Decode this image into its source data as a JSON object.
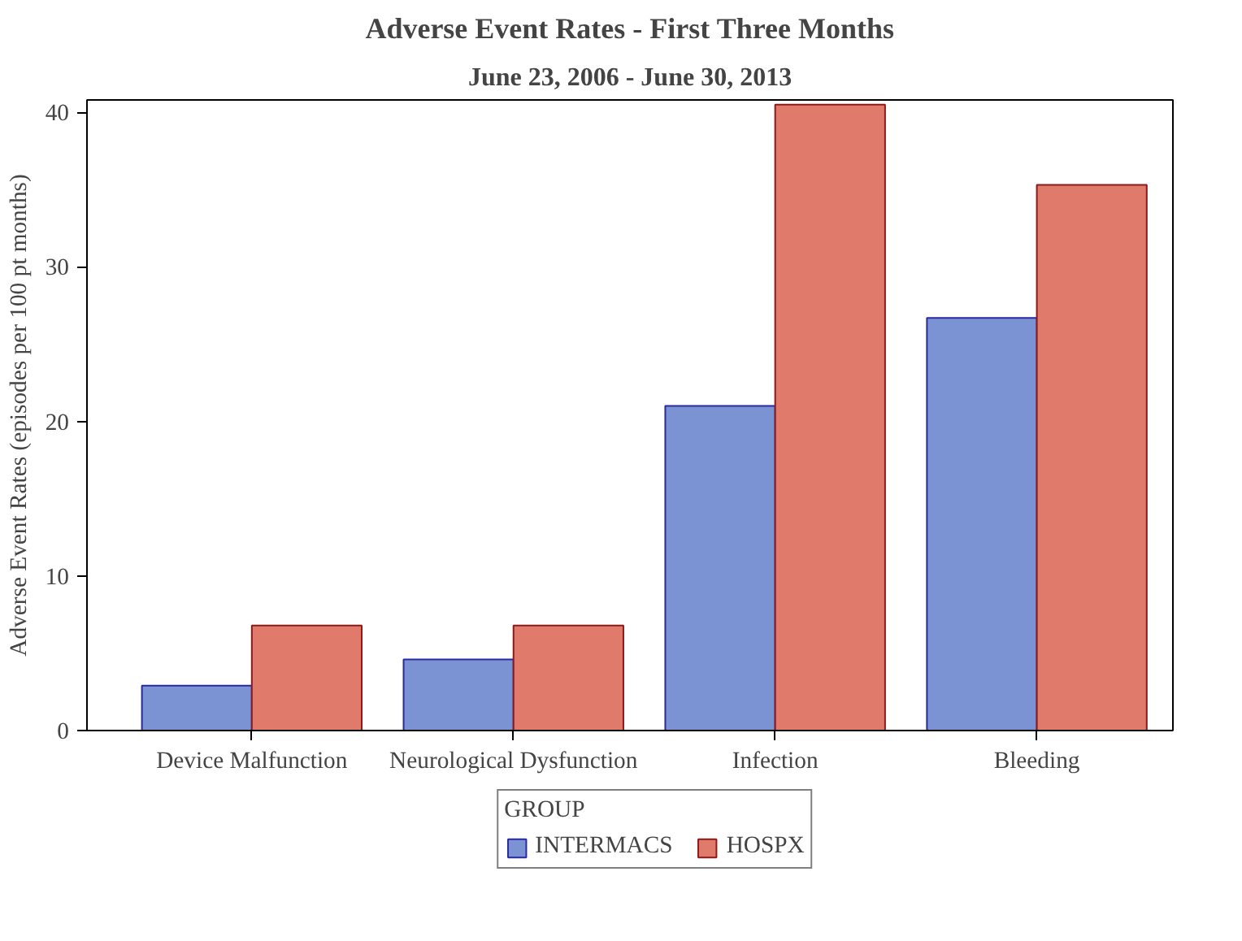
{
  "chart_data": {
    "type": "bar",
    "title": "Adverse Event Rates - First Three Months",
    "subtitle": "June 23, 2006 - June 30, 2013",
    "ylabel": "Adverse Event Rates (episodes per 100 pt months)",
    "legend_title": "GROUP",
    "categories": [
      "Device Malfunction",
      "Neurological Dysfunction",
      "Infection",
      "Bleeding"
    ],
    "series": [
      {
        "name": "INTERMACS",
        "color": "#7b93d3",
        "values": [
          2.9,
          4.6,
          21.0,
          26.7
        ]
      },
      {
        "name": "HOSPX",
        "color": "#e07b6b",
        "values": [
          6.8,
          6.8,
          40.5,
          35.3
        ]
      }
    ],
    "ylim": [
      0,
      40.8
    ],
    "yticks": [
      0,
      10,
      20,
      30,
      40
    ],
    "grid": false,
    "legend": "bottom"
  }
}
